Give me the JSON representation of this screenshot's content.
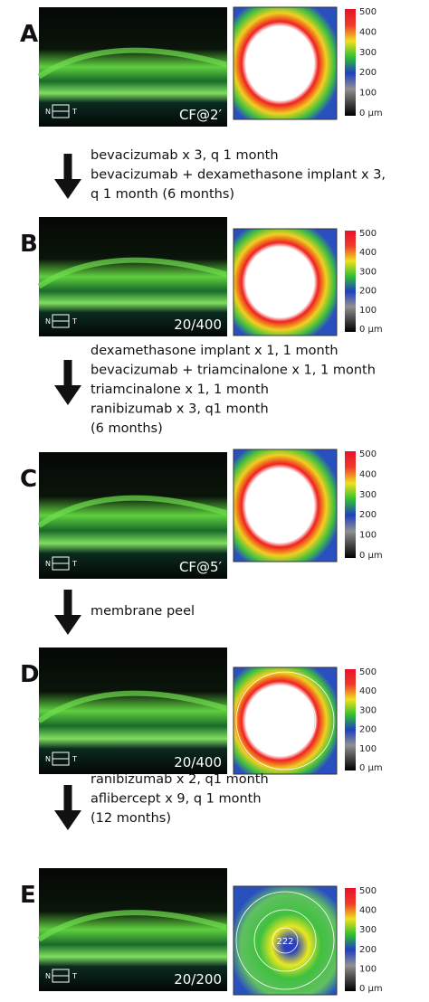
{
  "panels": [
    {
      "label": "A",
      "acuity": "CF@2′"
    },
    {
      "label": "B",
      "acuity": "20/400"
    },
    {
      "label": "C",
      "acuity": "CF@5′"
    },
    {
      "label": "D",
      "acuity": "20/400"
    },
    {
      "label": "E",
      "acuity": "20/200"
    }
  ],
  "scale_labels": [
    "500",
    "400",
    "300",
    "200",
    "100",
    "0 µm"
  ],
  "orientation": {
    "nasal": "N",
    "temporal": "T"
  },
  "map_values": {
    "E_center": "222"
  },
  "treatments": [
    {
      "lines": [
        "bevacizumab x 3, q 1 month",
        "bevacizumab + dexamethasone implant x 3,",
        "q 1 month  (6 months)"
      ]
    },
    {
      "lines": [
        "dexamethasone implant x 1, 1 month",
        "bevacizumab + triamcinalone x 1,  1 month",
        "triamcinalone x 1, 1 month",
        "ranibizumab x 3, q1 month",
        "(6 months)"
      ]
    },
    {
      "lines": [
        "membrane peel"
      ]
    },
    {
      "lines": [
        "ranibizumab x 2, q1 month",
        "aflibercept x 9, q 1 month",
        "(12 months)"
      ]
    }
  ]
}
